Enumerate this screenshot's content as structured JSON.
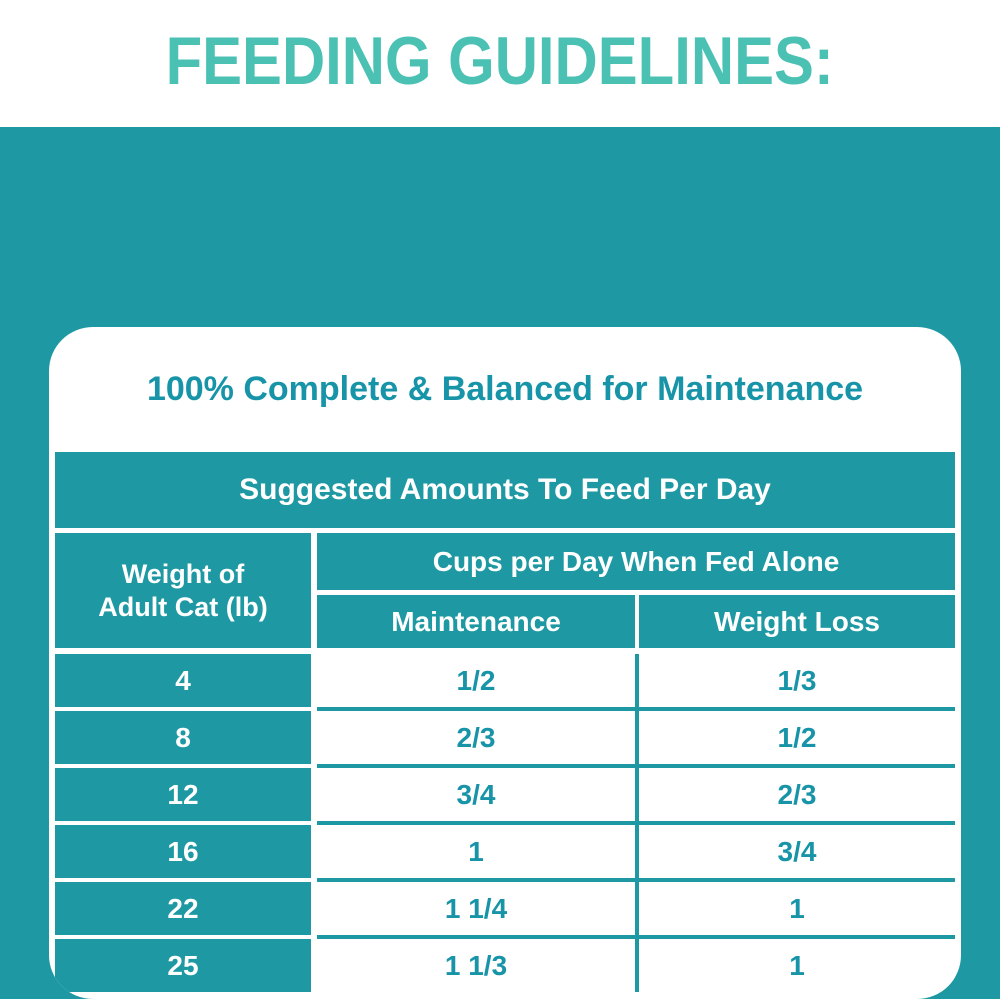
{
  "page": {
    "heading": "FEEDING GUIDELINES:"
  },
  "card": {
    "title": "100% Complete & Balanced for Maintenance",
    "banner": "Suggested Amounts To Feed Per Day",
    "table": {
      "weight_header_line1": "Weight of",
      "weight_header_line2": "Adult Cat (lb)",
      "group_header": "Cups per Day When Fed Alone",
      "col_maintenance": "Maintenance",
      "col_weight_loss": "Weight Loss",
      "rows": [
        {
          "weight": "4",
          "maintenance": "1/2",
          "weight_loss": "1/3"
        },
        {
          "weight": "8",
          "maintenance": "2/3",
          "weight_loss": "1/2"
        },
        {
          "weight": "12",
          "maintenance": "3/4",
          "weight_loss": "2/3"
        },
        {
          "weight": "16",
          "maintenance": "1",
          "weight_loss": "3/4"
        },
        {
          "weight": "22",
          "maintenance": "1 1/4",
          "weight_loss": "1"
        },
        {
          "weight": "25",
          "maintenance": "1 1/3",
          "weight_loss": "1"
        }
      ]
    }
  },
  "colors": {
    "teal_background": "#1E99A3",
    "heading_text": "#4BC1B4",
    "deep_teal_text": "#1794A8",
    "white": "#FFFFFF"
  },
  "chart_data": {
    "type": "table",
    "title": "Suggested Amounts To Feed Per Day",
    "subtitle": "100% Complete & Balanced for Maintenance",
    "columns": [
      "Weight of Adult Cat (lb)",
      "Maintenance (cups per day when fed alone)",
      "Weight Loss (cups per day when fed alone)"
    ],
    "rows": [
      [
        "4",
        "1/2",
        "1/3"
      ],
      [
        "8",
        "2/3",
        "1/2"
      ],
      [
        "12",
        "3/4",
        "2/3"
      ],
      [
        "16",
        "1",
        "3/4"
      ],
      [
        "22",
        "1 1/4",
        "1"
      ],
      [
        "25",
        "1 1/3",
        "1"
      ]
    ]
  }
}
